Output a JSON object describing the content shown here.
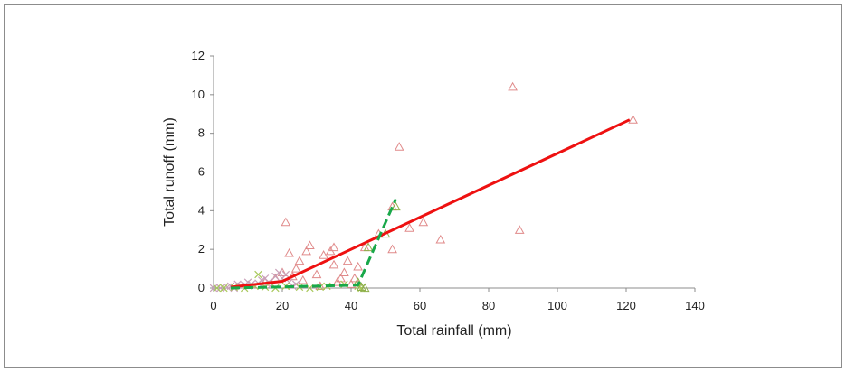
{
  "chart_data": {
    "type": "scatter",
    "title": "",
    "xlabel": "Total rainfall (mm)",
    "ylabel": "Total runoff (mm)",
    "xlim": [
      0,
      140
    ],
    "ylim": [
      0,
      12
    ],
    "xticks": [
      0,
      20,
      40,
      60,
      80,
      100,
      120,
      140
    ],
    "yticks": [
      0,
      2,
      4,
      6,
      8,
      10,
      12
    ],
    "grid": false,
    "legend": "none",
    "series": [
      {
        "marker": "triangle",
        "color": "#e08a8a",
        "points": [
          [
            21,
            3.4
          ],
          [
            22,
            1.8
          ],
          [
            24,
            1.0
          ],
          [
            25,
            1.4
          ],
          [
            27,
            1.9
          ],
          [
            28,
            2.2
          ],
          [
            30,
            0.7
          ],
          [
            32,
            1.7
          ],
          [
            34,
            1.9
          ],
          [
            35,
            2.1
          ],
          [
            35,
            1.2
          ],
          [
            37,
            0.5
          ],
          [
            38,
            0.8
          ],
          [
            39,
            1.4
          ],
          [
            40,
            0.2
          ],
          [
            41,
            0.5
          ],
          [
            42,
            1.1
          ],
          [
            44,
            2.1
          ],
          [
            48,
            2.8
          ],
          [
            52,
            4.2
          ],
          [
            52,
            2.0
          ],
          [
            54,
            7.3
          ],
          [
            57,
            3.1
          ],
          [
            61,
            3.4
          ],
          [
            66,
            2.5
          ],
          [
            87,
            10.4
          ],
          [
            89,
            3.0
          ],
          [
            122,
            8.7
          ],
          [
            15,
            0.3
          ],
          [
            18,
            0.5
          ],
          [
            20,
            0.8
          ],
          [
            23,
            0.6
          ],
          [
            26,
            0.4
          ],
          [
            31,
            0.1
          ],
          [
            36,
            0.3
          ]
        ]
      },
      {
        "marker": "x",
        "color": "#c9a0b8",
        "points": [
          [
            0,
            0.0
          ],
          [
            2,
            0.0
          ],
          [
            4,
            0.05
          ],
          [
            5,
            0.1
          ],
          [
            6,
            0.0
          ],
          [
            7,
            0.2
          ],
          [
            8,
            0.1
          ],
          [
            9,
            0.15
          ],
          [
            10,
            0.3
          ],
          [
            11,
            0.2
          ],
          [
            12,
            0.1
          ],
          [
            13,
            0.25
          ],
          [
            14,
            0.4
          ],
          [
            15,
            0.5
          ],
          [
            16,
            0.3
          ],
          [
            17,
            0.2
          ],
          [
            18,
            0.6
          ],
          [
            19,
            0.8
          ],
          [
            20,
            0.5
          ],
          [
            21,
            0.7
          ],
          [
            22,
            0.3
          ],
          [
            23,
            0.1
          ],
          [
            24,
            0.2
          ]
        ]
      },
      {
        "marker": "x",
        "color": "#a8c85a",
        "points": [
          [
            1,
            0.0
          ],
          [
            3,
            0.0
          ],
          [
            6,
            0.05
          ],
          [
            9,
            0.0
          ],
          [
            12,
            0.1
          ],
          [
            13,
            0.7
          ],
          [
            15,
            0.05
          ],
          [
            18,
            0.0
          ],
          [
            21,
            0.1
          ],
          [
            25,
            0.05
          ],
          [
            28,
            0.0
          ],
          [
            31,
            0.05
          ],
          [
            33,
            0.1
          ],
          [
            38,
            0.2
          ],
          [
            42,
            0.1
          ],
          [
            43,
            0.0
          ]
        ]
      },
      {
        "marker": "triangle",
        "color": "#8fb04a",
        "points": [
          [
            42,
            0.3
          ],
          [
            43,
            0.05
          ],
          [
            44,
            0.0
          ],
          [
            45,
            2.1
          ],
          [
            50,
            2.8
          ],
          [
            53,
            4.2
          ]
        ]
      }
    ],
    "fit_lines": [
      {
        "style": "solid",
        "color": "#ee1111",
        "points": [
          [
            5,
            0.05
          ],
          [
            20,
            0.35
          ],
          [
            121,
            8.7
          ]
        ]
      },
      {
        "style": "dashed",
        "color": "#19a84a",
        "points": [
          [
            5,
            0.0
          ],
          [
            42,
            0.15
          ],
          [
            53,
            4.6
          ]
        ]
      }
    ]
  }
}
